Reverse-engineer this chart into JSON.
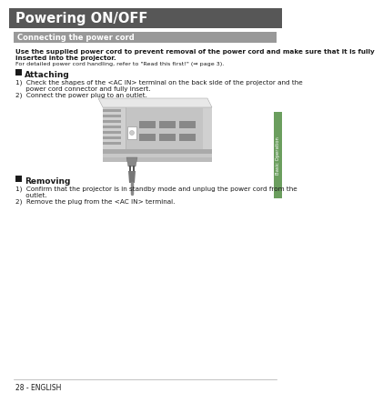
{
  "title": "Powering ON/OFF",
  "title_bg": "#575757",
  "title_color": "#ffffff",
  "title_fontsize": 10.5,
  "section1_title": "Connecting the power cord",
  "section1_bg": "#999999",
  "section1_color": "#ffffff",
  "section1_fontsize": 6.0,
  "body_text1a": "Use the supplied power cord to prevent removal of the power cord and make sure that it is fully",
  "body_text1b": "inserted into the projector.",
  "body_text2": "For detailed power cord handling, refer to \"Read this first!\" (⇒ page 3).",
  "attaching_step1a": "1)  Check the shapes of the <AC IN> terminal on the back side of the projector and the",
  "attaching_step1b": "     power cord connector and fully insert.",
  "attaching_step2": "2)  Connect the power plug to an outlet.",
  "removing_step1a": "1)  Confirm that the projector is in standby mode and unplug the power cord from the",
  "removing_step1b": "     outlet.",
  "removing_step2": "2)  Remove the plug from the <AC IN> terminal.",
  "sidebar_text": "Basic Operation",
  "sidebar_bg": "#6b9e5e",
  "sidebar_color": "#ffffff",
  "footer_text": "28 - ENGLISH",
  "page_bg": "#ffffff",
  "body_color": "#1a1a1a",
  "body_fontsize": 5.2,
  "section_fontsize": 6.5,
  "small_fontsize": 4.6,
  "bold_body_fontsize": 5.2
}
